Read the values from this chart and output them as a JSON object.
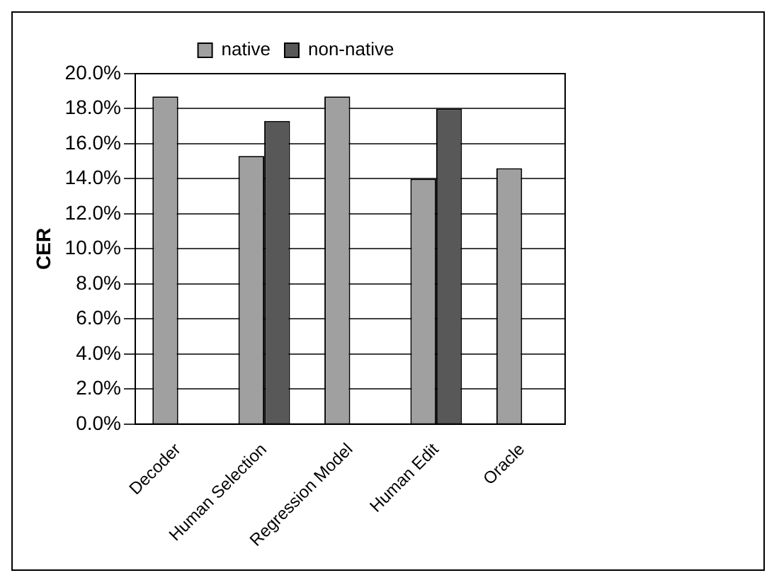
{
  "chart_data": {
    "type": "bar",
    "ylabel": "CER",
    "categories": [
      "Decoder",
      "Human Selection",
      "Regression Model",
      "Human Edit",
      "Oracle"
    ],
    "series": [
      {
        "name": "native",
        "color": "#a0a0a0",
        "values": [
          18.7,
          15.3,
          18.7,
          14.0,
          14.6
        ]
      },
      {
        "name": "non-native",
        "color": "#585858",
        "values": [
          null,
          17.3,
          null,
          18.0,
          null
        ]
      }
    ],
    "ylim": [
      0,
      20
    ],
    "yticks": [
      {
        "value": 0,
        "label": "0.0%"
      },
      {
        "value": 2,
        "label": "2.0%"
      },
      {
        "value": 4,
        "label": "4.0%"
      },
      {
        "value": 6,
        "label": "6.0%"
      },
      {
        "value": 8,
        "label": "8.0%"
      },
      {
        "value": 10,
        "label": "10.0%"
      },
      {
        "value": 12,
        "label": "12.0%"
      },
      {
        "value": 14,
        "label": "14.0%"
      },
      {
        "value": 16,
        "label": "16.0%"
      },
      {
        "value": 18,
        "label": "18.0%"
      },
      {
        "value": 20,
        "label": "20.0%"
      }
    ],
    "grid": "y",
    "legend": "top"
  }
}
